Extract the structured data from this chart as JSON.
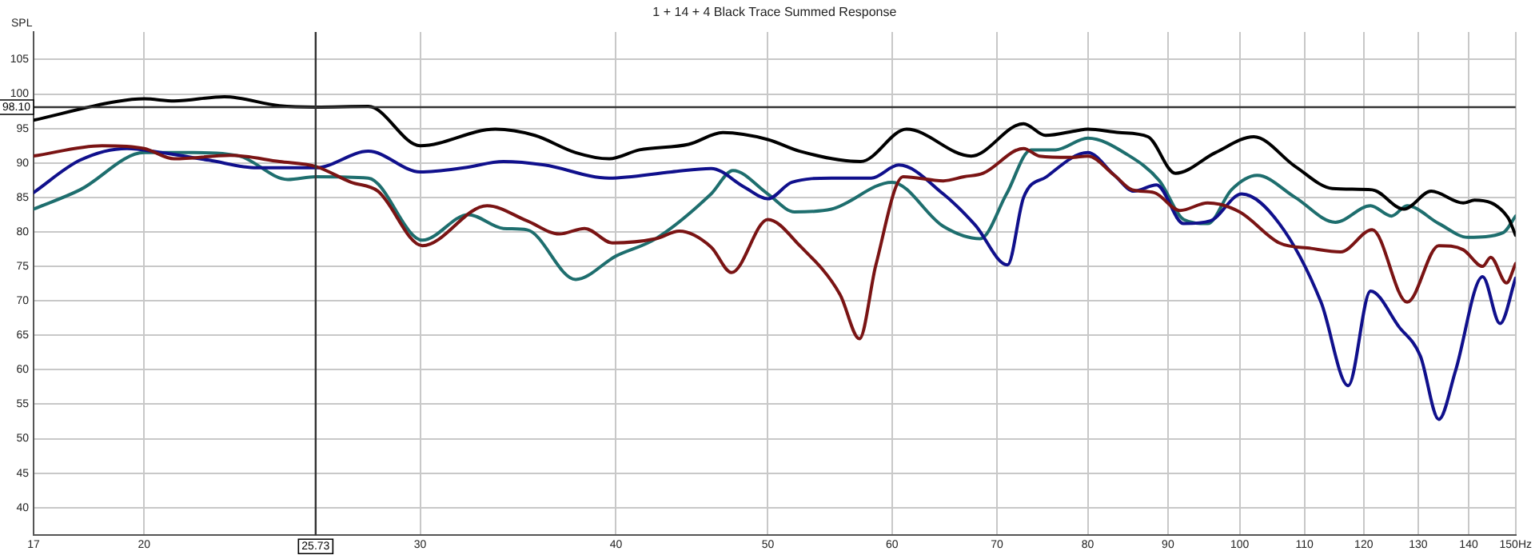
{
  "chart_data": {
    "type": "line",
    "title": "1 + 14 + 4 Black Trace Summed Response",
    "ylabel": "SPL",
    "log": "x",
    "grid": true,
    "xlim": [
      17,
      150
    ],
    "xticks": [
      17,
      20,
      30,
      40,
      50,
      60,
      70,
      80,
      90,
      100,
      110,
      120,
      130,
      140,
      {
        "value": 150,
        "label": "150Hz"
      }
    ],
    "ylim": [
      36,
      109
    ],
    "yticks": [
      40,
      45,
      50,
      55,
      60,
      65,
      70,
      75,
      80,
      85,
      90,
      95,
      100,
      105
    ],
    "ref_lines": [
      {
        "axis": "x",
        "value": 25.73,
        "label": "25.73",
        "color": "#333333"
      },
      {
        "axis": "y",
        "value": 98.1,
        "label": "98.10",
        "color": "#333333"
      }
    ],
    "series": [
      {
        "color": "#000000",
        "x": [
          17,
          19.2,
          20,
          20.9,
          22.5,
          24.4,
          25.73,
          27.8,
          30,
          33.5,
          35.5,
          37.7,
          39.6,
          41.4,
          44.5,
          46.8,
          50,
          52.4,
          57.3,
          61.3,
          67.4,
          72.8,
          75.2,
          78.8,
          80,
          83.8,
          87.4,
          91,
          96.5,
          102.1,
          108.5,
          114.6,
          121.5,
          127.3,
          132.5,
          138.9,
          141.2,
          148.3,
          150
        ],
        "values": [
          96.2,
          98.9,
          99.3,
          99.0,
          99.6,
          98.3,
          98.1,
          98.2,
          92.5,
          94.9,
          94.0,
          91.5,
          90.6,
          91.9,
          92.7,
          94.4,
          93.4,
          91.7,
          90.2,
          94.9,
          91.0,
          95.7,
          94.0,
          94.7,
          94.9,
          94.4,
          93.8,
          88.5,
          91.5,
          93.8,
          89.5,
          86.3,
          86.1,
          83.3,
          85.9,
          84.2,
          84.6,
          82.1,
          79.5
        ]
      },
      {
        "color": "#7a1414",
        "x": [
          17,
          18.8,
          20,
          20.9,
          22.7,
          24.4,
          25.73,
          27.1,
          28.2,
          30.1,
          33.1,
          35.1,
          36.8,
          38.2,
          39.8,
          42.4,
          43.9,
          46,
          47.4,
          50,
          52.4,
          55.6,
          57.2,
          58.6,
          61,
          64.7,
          66.7,
          68.6,
          72.8,
          74.5,
          78,
          80,
          83.2,
          85.4,
          88.2,
          91.6,
          95.4,
          100,
          106,
          111.1,
          116,
          121.5,
          127.9,
          134,
          138.9,
          142.9,
          144.6,
          148,
          150
        ],
        "values": [
          91.0,
          92.5,
          92.1,
          90.6,
          91.1,
          90.2,
          89.5,
          87.2,
          85.9,
          78.0,
          83.8,
          81.6,
          79.7,
          80.5,
          78.4,
          79.0,
          80.1,
          77.8,
          74.1,
          81.8,
          78.0,
          70.9,
          64.5,
          75.2,
          88.0,
          87.4,
          88.0,
          88.5,
          92.1,
          91.0,
          90.8,
          91.0,
          88.2,
          86.1,
          85.7,
          83.1,
          84.2,
          82.9,
          78.4,
          77.6,
          77.1,
          80.3,
          69.8,
          78.0,
          77.4,
          75.0,
          76.3,
          72.6,
          75.4
        ]
      },
      {
        "color": "#10108c",
        "x": [
          17,
          18.2,
          19.5,
          20.5,
          22,
          23.6,
          25.73,
          27.8,
          30,
          32,
          33.9,
          36,
          39.6,
          43.4,
          46,
          48.3,
          50,
          51.8,
          54.9,
          58.2,
          60.6,
          64.7,
          67.8,
          71.1,
          72.8,
          75.3,
          80,
          83.2,
          85.6,
          88.5,
          92.1,
          95.8,
          100.3,
          106,
          112.7,
          117.3,
          121.2,
          126.4,
          130.4,
          134,
          137.3,
          142.9,
          146.6,
          150
        ],
        "values": [
          85.7,
          90.4,
          92.1,
          91.5,
          90.4,
          89.3,
          89.3,
          91.7,
          88.7,
          89.3,
          90.2,
          89.7,
          87.8,
          88.7,
          89.2,
          86.5,
          84.8,
          87.2,
          87.8,
          87.8,
          89.7,
          85.5,
          81.0,
          75.2,
          85.0,
          88.0,
          91.5,
          88.2,
          85.9,
          86.8,
          81.2,
          81.6,
          85.5,
          81.2,
          69.8,
          57.7,
          71.4,
          66.2,
          62.0,
          52.8,
          59.8,
          73.5,
          66.7,
          73.3
        ]
      },
      {
        "color": "#1e6e6e",
        "x": [
          17,
          18.2,
          20,
          21.5,
          23,
          24.7,
          25.73,
          27.8,
          30.1,
          32.2,
          33.9,
          35.1,
          37.7,
          40,
          42.4,
          46,
          47.5,
          50,
          52,
          54.9,
          60,
          64.7,
          68.3,
          71,
          73.6,
          76.3,
          80,
          84.8,
          88.9,
          92.1,
          95.4,
          98.8,
          102.6,
          108.5,
          115.1,
          121.2,
          125,
          127.9,
          134,
          139.9,
          147.3,
          150
        ],
        "values": [
          83.3,
          86.1,
          91.5,
          91.5,
          91.0,
          87.6,
          88.0,
          87.8,
          78.8,
          82.5,
          80.5,
          80.3,
          73.1,
          76.5,
          79.0,
          85.5,
          88.9,
          85.5,
          82.9,
          83.3,
          87.2,
          80.8,
          79.0,
          85.5,
          91.9,
          91.9,
          93.6,
          91.2,
          87.4,
          81.8,
          81.2,
          86.1,
          88.2,
          85.0,
          81.4,
          83.8,
          82.3,
          83.8,
          81.2,
          79.2,
          79.9,
          82.3
        ]
      }
    ]
  }
}
